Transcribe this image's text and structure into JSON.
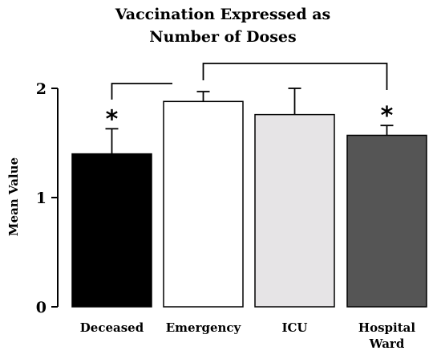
{
  "chart_data": {
    "type": "bar",
    "title_lines": [
      "Vaccination Expressed as",
      "Number of Doses"
    ],
    "ylabel": "Mean Value",
    "xlabel": "",
    "ylim": [
      0,
      2
    ],
    "yticks": [
      "0",
      "1",
      "2"
    ],
    "grid": false,
    "categories": [
      {
        "lines": [
          "Deceased"
        ]
      },
      {
        "lines": [
          "Emergency"
        ]
      },
      {
        "lines": [
          "ICU"
        ]
      },
      {
        "lines": [
          "Hospital",
          "Ward"
        ]
      }
    ],
    "values": [
      1.4,
      1.88,
      1.76,
      1.57
    ],
    "errors": [
      0.23,
      0.09,
      0.24,
      0.09
    ],
    "colors": [
      "#000000",
      "#ffffff",
      "#e6e4e6",
      "#555555"
    ],
    "significance": [
      {
        "category_index": 0,
        "label": "*"
      },
      {
        "category_index": 3,
        "label": "*"
      }
    ],
    "comparison_brackets": [
      {
        "from": 0,
        "to": 1
      },
      {
        "from": 1,
        "to": 3
      }
    ]
  }
}
